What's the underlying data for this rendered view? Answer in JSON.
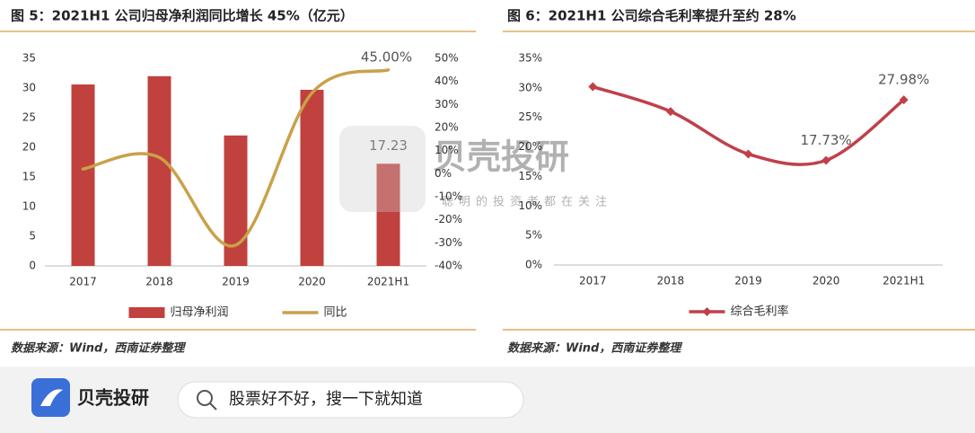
{
  "chart_data": [
    {
      "type": "bar",
      "title": "图 5：2021H1 公司归母净利润同比增长 45%（亿元）",
      "categories": [
        "2017",
        "2018",
        "2019",
        "2020",
        "2021H1"
      ],
      "series": [
        {
          "name": "归母净利润",
          "type": "bar",
          "color": "#c0413d",
          "values": [
            30.6,
            32.0,
            22.0,
            29.7,
            17.23
          ]
        },
        {
          "name": "同比",
          "type": "line",
          "axis": "y2",
          "color": "#c9a14a",
          "values": [
            2,
            7,
            -31,
            35,
            45
          ],
          "value_labels": [
            null,
            null,
            null,
            null,
            "45.00%"
          ]
        }
      ],
      "ylim": [
        0,
        35
      ],
      "yticks": [
        0,
        5,
        10,
        15,
        20,
        25,
        30,
        35
      ],
      "y2lim": [
        -40,
        50
      ],
      "y2ticks": [
        {
          "value": -40,
          "label": "-40%"
        },
        {
          "value": -30,
          "label": "-30%"
        },
        {
          "value": -20,
          "label": "-20%"
        },
        {
          "value": -10,
          "label": "-10%"
        },
        {
          "value": 0,
          "label": "0%"
        },
        {
          "value": 10,
          "label": "10%"
        },
        {
          "value": 20,
          "label": "20%"
        },
        {
          "value": 30,
          "label": "30%"
        },
        {
          "value": 40,
          "label": "40%"
        },
        {
          "value": 50,
          "label": "50%"
        }
      ],
      "bar_label_index": 4,
      "source": "数据来源：Wind，西南证券整理"
    },
    {
      "type": "line",
      "title": "图 6：2021H1 公司综合毛利率提升至约 28%",
      "categories": [
        "2017",
        "2018",
        "2019",
        "2020",
        "2021H1"
      ],
      "series": [
        {
          "name": "综合毛利率",
          "type": "line",
          "color": "#c0404a",
          "values": [
            30.2,
            26.0,
            18.8,
            17.73,
            27.98
          ],
          "value_labels": [
            null,
            null,
            null,
            "17.73%",
            "27.98%"
          ]
        }
      ],
      "ylim": [
        0,
        35
      ],
      "yticks": [
        {
          "value": 0,
          "label": "0%"
        },
        {
          "value": 5,
          "label": "5%"
        },
        {
          "value": 10,
          "label": "10%"
        },
        {
          "value": 15,
          "label": "15%"
        },
        {
          "value": 20,
          "label": "20%"
        },
        {
          "value": 25,
          "label": "25%"
        },
        {
          "value": 30,
          "label": "30%"
        },
        {
          "value": 35,
          "label": "35%"
        }
      ],
      "source": "数据来源：Wind，西南证券整理"
    }
  ],
  "watermark": {
    "brand": "贝壳投研",
    "slogan": "聪明的投资者都在关注"
  },
  "app_bar": {
    "brand": "贝壳投研",
    "search_placeholder": "股票好不好，搜一下就知道"
  }
}
